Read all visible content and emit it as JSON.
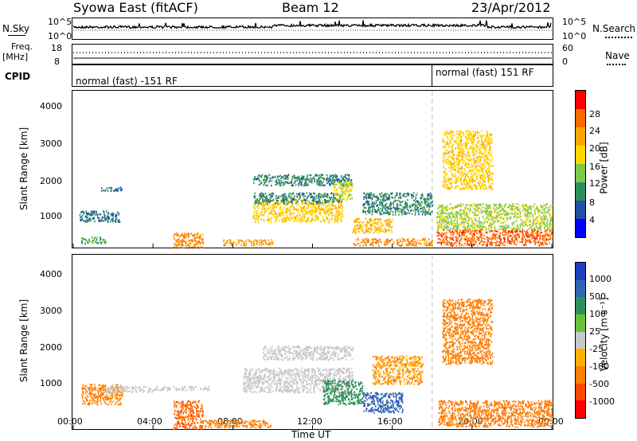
{
  "header": {
    "station": "Syowa East (fitACF)",
    "beam": "Beam 12",
    "date": "23/Apr/2012"
  },
  "noise_panel": {
    "left_label": "N.Sky",
    "right_label": "N.Search",
    "left_ticks": [
      "10^5",
      "10^0"
    ],
    "right_ticks": [
      "10^5",
      "10^0"
    ]
  },
  "freq_panel": {
    "left_label_1": "Freq.",
    "left_label_2": "[MHz]",
    "right_label": "Nave",
    "left_ticks": [
      "18",
      "8"
    ],
    "right_ticks": [
      "60",
      "0"
    ]
  },
  "cpid_panel": {
    "label": "CPID",
    "mode_1": "normal (fast) -151 RF",
    "mode_2": "normal (fast) 151 RF"
  },
  "power_colorbar": {
    "label": "Power [dB]",
    "ticks": [
      "28",
      "24",
      "20",
      "16",
      "12",
      "8",
      "4"
    ],
    "colors": [
      "#ff0000",
      "#ff6a00",
      "#ffa500",
      "#ffd700",
      "#7fc94a",
      "#2f8f5a",
      "#1f4fa0",
      "#0000ff"
    ]
  },
  "velocity_colorbar": {
    "label": "Velocity [m s⁻¹]",
    "ticks": [
      "1000",
      "500",
      "100",
      "25",
      "-25",
      "-100",
      "-500",
      "-1000"
    ],
    "colors": [
      "#1e3fbf",
      "#2e66b0",
      "#2f8f5a",
      "#66c23a",
      "#c8c8c8",
      "#ffb000",
      "#ff7f00",
      "#ff4500",
      "#ff0000"
    ]
  },
  "axes": {
    "ylabel": "Slant Range [km]",
    "xlabel": "Time UT",
    "yticks": [
      "4000",
      "3000",
      "2000",
      "1000"
    ],
    "xticks": [
      "00:00",
      "04:00",
      "08:00",
      "12:00",
      "16:00",
      "20:00",
      "00:00"
    ]
  },
  "chart_data": [
    {
      "type": "heatmap",
      "title": "",
      "xlabel": "",
      "ylabel": "Slant Range [km]",
      "xlim": [
        0,
        24
      ],
      "ylim": [
        180,
        4500
      ],
      "colorbar": "Power [dB]",
      "zlim": [
        0,
        30
      ],
      "blobs": [
        {
          "t0": 0.3,
          "t1": 2.3,
          "r0": 900,
          "r1": 1200,
          "z": 6
        },
        {
          "t0": 1.3,
          "t1": 2.5,
          "r0": 1750,
          "r1": 1850,
          "z": 6
        },
        {
          "t0": 0.4,
          "t1": 1.6,
          "r0": 300,
          "r1": 500,
          "z": 10
        },
        {
          "t0": 5.0,
          "t1": 6.5,
          "r0": 200,
          "r1": 600,
          "z": 24
        },
        {
          "t0": 7.5,
          "t1": 10.0,
          "r0": 250,
          "r1": 420,
          "z": 22
        },
        {
          "t0": 9.0,
          "t1": 13.5,
          "r0": 900,
          "r1": 1500,
          "z": 18
        },
        {
          "t0": 9.0,
          "t1": 14.0,
          "r0": 1900,
          "r1": 2200,
          "z": 8
        },
        {
          "t0": 9.0,
          "t1": 13.5,
          "r0": 1400,
          "r1": 1700,
          "z": 8
        },
        {
          "t0": 13.0,
          "t1": 14.0,
          "r0": 1500,
          "r1": 2000,
          "z": 16
        },
        {
          "t0": 14.0,
          "t1": 16.0,
          "r0": 600,
          "r1": 1000,
          "z": 20
        },
        {
          "t0": 14.5,
          "t1": 18.0,
          "r0": 1100,
          "r1": 1700,
          "z": 8
        },
        {
          "t0": 14.0,
          "t1": 18.0,
          "r0": 250,
          "r1": 450,
          "z": 24
        },
        {
          "t0": 18.2,
          "t1": 24.0,
          "r0": 250,
          "r1": 700,
          "z": 26
        },
        {
          "t0": 18.2,
          "t1": 24.0,
          "r0": 700,
          "r1": 1400,
          "z": 14
        },
        {
          "t0": 18.5,
          "t1": 21.0,
          "r0": 1800,
          "r1": 3400,
          "z": 18
        }
      ]
    },
    {
      "type": "heatmap",
      "title": "",
      "xlabel": "Time UT",
      "ylabel": "Slant Range [km]",
      "xlim": [
        0,
        24
      ],
      "ylim": [
        180,
        4500
      ],
      "colorbar": "Velocity [m s⁻¹]",
      "zlim": [
        -1000,
        1000
      ],
      "blobs": [
        {
          "t0": 0.4,
          "t1": 2.5,
          "r0": 800,
          "r1": 1300,
          "z": -300
        },
        {
          "t0": 1.5,
          "t1": 4.0,
          "r0": 1100,
          "r1": 1250,
          "z": 0
        },
        {
          "t0": 4.0,
          "t1": 6.8,
          "r0": 1150,
          "r1": 1250,
          "z": 0
        },
        {
          "t0": 5.0,
          "t1": 6.5,
          "r0": 200,
          "r1": 900,
          "z": -500
        },
        {
          "t0": 6.5,
          "t1": 10.0,
          "r0": 230,
          "r1": 420,
          "z": -150
        },
        {
          "t0": 8.5,
          "t1": 14.0,
          "r0": 1100,
          "r1": 1700,
          "z": 0
        },
        {
          "t0": 9.5,
          "t1": 14.0,
          "r0": 1900,
          "r1": 2250,
          "z": 0
        },
        {
          "t0": 12.5,
          "t1": 14.5,
          "r0": 800,
          "r1": 1400,
          "z": 200
        },
        {
          "t0": 14.5,
          "t1": 16.5,
          "r0": 600,
          "r1": 1100,
          "z": 800
        },
        {
          "t0": 15.0,
          "t1": 17.5,
          "r0": 1300,
          "r1": 2000,
          "z": -100
        },
        {
          "t0": 18.3,
          "t1": 24.0,
          "r0": 250,
          "r1": 900,
          "z": -400
        },
        {
          "t0": 18.5,
          "t1": 21.0,
          "r0": 1800,
          "r1": 3400,
          "z": -200
        }
      ]
    }
  ]
}
